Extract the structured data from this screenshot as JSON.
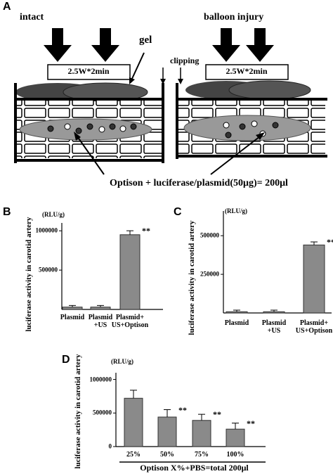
{
  "diagram": {
    "panel": "A",
    "left_label": "intact",
    "right_label": "balloon injury",
    "gel_label": "gel",
    "clipping_label": "clipping",
    "ultrasound_left": "2.5W*2min",
    "ultrasound_right": "2.5W*2min",
    "mixture_label": "Optison + luciferase/plasmid(50μg)= 200μl"
  },
  "chart_data": [
    {
      "type": "bar",
      "panel": "B",
      "y_label": "luciferase activity in carotid artery",
      "unit_label": "(RLU/g)",
      "categories": [
        "Plasmid",
        "Plasmid\n+US",
        "Plasmid+\nUS+Optison"
      ],
      "values": [
        30000,
        30000,
        950000
      ],
      "errors": [
        20000,
        20000,
        50000
      ],
      "significance": [
        null,
        null,
        "**"
      ],
      "color": "#8a8a8a",
      "ylim": [
        0,
        1100000
      ],
      "yticks": [
        500000,
        1000000
      ]
    },
    {
      "type": "bar",
      "panel": "C",
      "y_label": "luciferase activity in carotid artery",
      "unit_label": "(RLU/g)",
      "categories": [
        "Plasmid",
        "Plasmid\n+US",
        "Plasmid+\nUS+Optison"
      ],
      "values": [
        8000,
        8000,
        440000
      ],
      "errors": [
        10000,
        10000,
        20000
      ],
      "significance": [
        null,
        null,
        "**"
      ],
      "color": "#8a8a8a",
      "ylim": [
        0,
        660000
      ],
      "yticks": [
        250000,
        500000
      ]
    },
    {
      "type": "bar",
      "panel": "D",
      "y_label": "luciferase activity in carotid artery",
      "unit_label": "(RLU/g)",
      "x_label": "Optison X%+PBS=total 200μl",
      "categories": [
        "25%",
        "50%",
        "75%",
        "100%"
      ],
      "values": [
        720000,
        440000,
        390000,
        260000
      ],
      "errors": [
        120000,
        110000,
        90000,
        90000
      ],
      "significance": [
        null,
        "**",
        "**",
        "**"
      ],
      "color": "#8a8a8a",
      "ylim": [
        0,
        1100000
      ],
      "yticks": [
        0,
        500000,
        1000000
      ]
    }
  ]
}
